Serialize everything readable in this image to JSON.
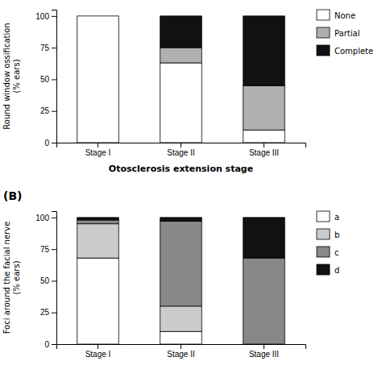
{
  "chart_data": [
    {
      "type": "bar",
      "stacked": true,
      "legend": "right",
      "categories": [
        "Stage I",
        "Stage II",
        "Stage III"
      ],
      "series": [
        {
          "name": "None",
          "color": "#ffffff",
          "values": [
            100,
            63,
            10
          ]
        },
        {
          "name": "Partial",
          "color": "#b0b0b0",
          "values": [
            0,
            12,
            35
          ]
        },
        {
          "name": "Complete",
          "color": "#111111",
          "values": [
            0,
            25,
            55
          ]
        }
      ],
      "ylabel": "Round window ossification\n(% ears)",
      "xlabel": "Otosclerosis extension stage",
      "ylim": [
        0,
        105
      ],
      "yticks": [
        0,
        25,
        50,
        75,
        100
      ]
    },
    {
      "type": "bar",
      "stacked": true,
      "legend": "right",
      "categories": [
        "Stage I",
        "Stage II",
        "Stage III"
      ],
      "series": [
        {
          "name": "a",
          "color": "#ffffff",
          "values": [
            68,
            10,
            0
          ]
        },
        {
          "name": "b",
          "color": "#cccccc",
          "values": [
            27,
            20,
            0
          ]
        },
        {
          "name": "c",
          "color": "#888888",
          "values": [
            3,
            67,
            68
          ]
        },
        {
          "name": "d",
          "color": "#111111",
          "values": [
            2,
            3,
            32
          ]
        }
      ],
      "ylabel": "Foci around the facial nerve\n(% ears)",
      "annotations": [
        "(B)"
      ],
      "ylim": [
        0,
        105
      ],
      "yticks": [
        0,
        25,
        50,
        75,
        100
      ]
    }
  ]
}
